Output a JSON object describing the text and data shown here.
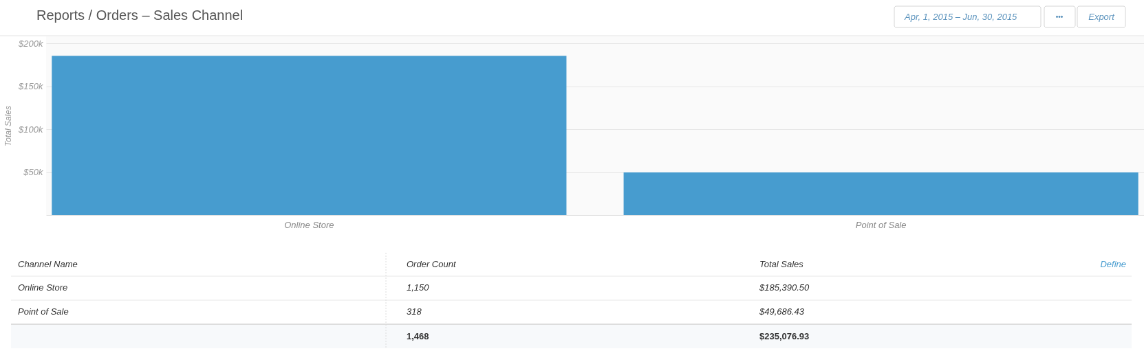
{
  "chart_data": {
    "type": "bar",
    "title": "Reports / Orders – Sales Channel",
    "ylabel": "Total Sales",
    "categories": [
      "Online Store",
      "Point of Sale"
    ],
    "values": [
      185390.5,
      49686.43
    ],
    "color": "#479ccf",
    "ylim": [
      0,
      208000
    ],
    "yticks": [
      {
        "value": 50000,
        "label": "$50k"
      },
      {
        "value": 100000,
        "label": "$100k"
      },
      {
        "value": 150000,
        "label": "$150k"
      },
      {
        "value": 200000,
        "label": "$200k"
      }
    ],
    "grid": "y",
    "annotations": [
      "Apr, 1, 2015 – Jun, 30, 2015",
      "•••",
      "Export",
      "Channel Name",
      "Order Count",
      "Total Sales",
      "Define",
      "1,150",
      "$185,390.50",
      "318",
      "$49,686.43",
      "1,468",
      "$235,076.93"
    ]
  }
}
